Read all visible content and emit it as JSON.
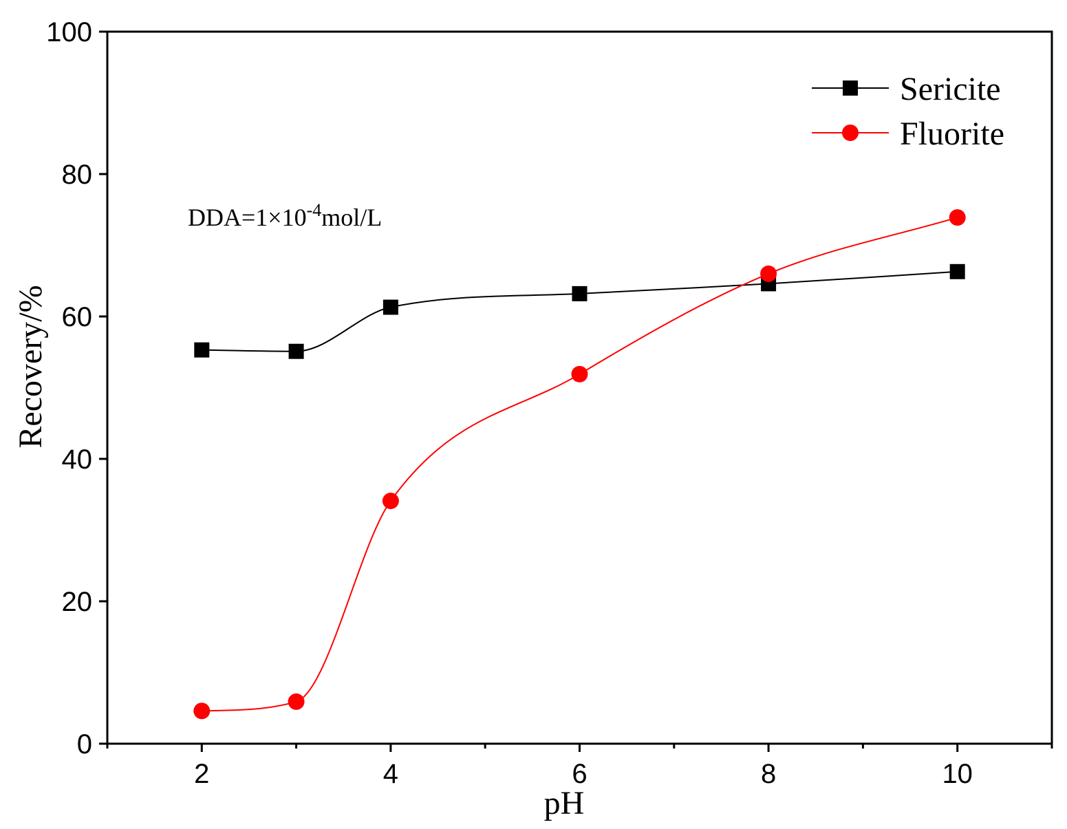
{
  "chart_data": {
    "type": "line",
    "xlabel": "pH",
    "ylabel": "Recovery/%",
    "xlim": [
      1,
      11
    ],
    "ylim": [
      0,
      100
    ],
    "x_ticks": [
      2,
      4,
      6,
      8,
      10
    ],
    "y_ticks": [
      0,
      20,
      40,
      60,
      80,
      100
    ],
    "grid": false,
    "legend_position": "top-right",
    "annotation": {
      "base": "DDA=1×10",
      "superscript": "-4",
      "suffix": "mol/L"
    },
    "series": [
      {
        "name": "Sericite",
        "marker": "square",
        "color": "#000000",
        "x": [
          2,
          3,
          4,
          6,
          8,
          10
        ],
        "y": [
          55.3,
          55.1,
          61.3,
          63.2,
          64.6,
          66.3
        ]
      },
      {
        "name": "Fluorite",
        "marker": "circle",
        "color": "#ff0000",
        "x": [
          2,
          3,
          4,
          6,
          8,
          10
        ],
        "y": [
          4.6,
          5.9,
          34.1,
          51.9,
          66.0,
          73.9
        ]
      }
    ]
  }
}
